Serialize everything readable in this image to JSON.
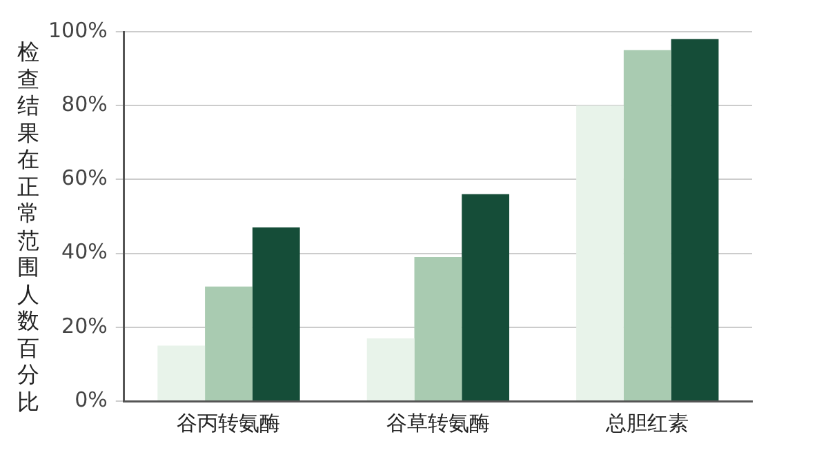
{
  "chart_data": {
    "type": "bar",
    "ylabel": "检查结果在正常范围人数百分比",
    "categories": [
      "谷丙转氨酶",
      "谷草转氨酶",
      "总胆红素"
    ],
    "series": [
      {
        "color": "#e8f3ea",
        "values": [
          15,
          17,
          80
        ]
      },
      {
        "color": "#a9cbb1",
        "values": [
          31,
          39,
          95
        ]
      },
      {
        "color": "#154d38",
        "values": [
          47,
          56,
          98
        ]
      }
    ],
    "ylim": [
      0,
      100
    ],
    "yticks": [
      {
        "value": 0,
        "label": "0%"
      },
      {
        "value": 20,
        "label": "20%"
      },
      {
        "value": 40,
        "label": "40%"
      },
      {
        "value": 60,
        "label": "60%"
      },
      {
        "value": 80,
        "label": "80%"
      },
      {
        "value": 100,
        "label": "100%"
      }
    ],
    "grid": "y",
    "legend": false
  }
}
